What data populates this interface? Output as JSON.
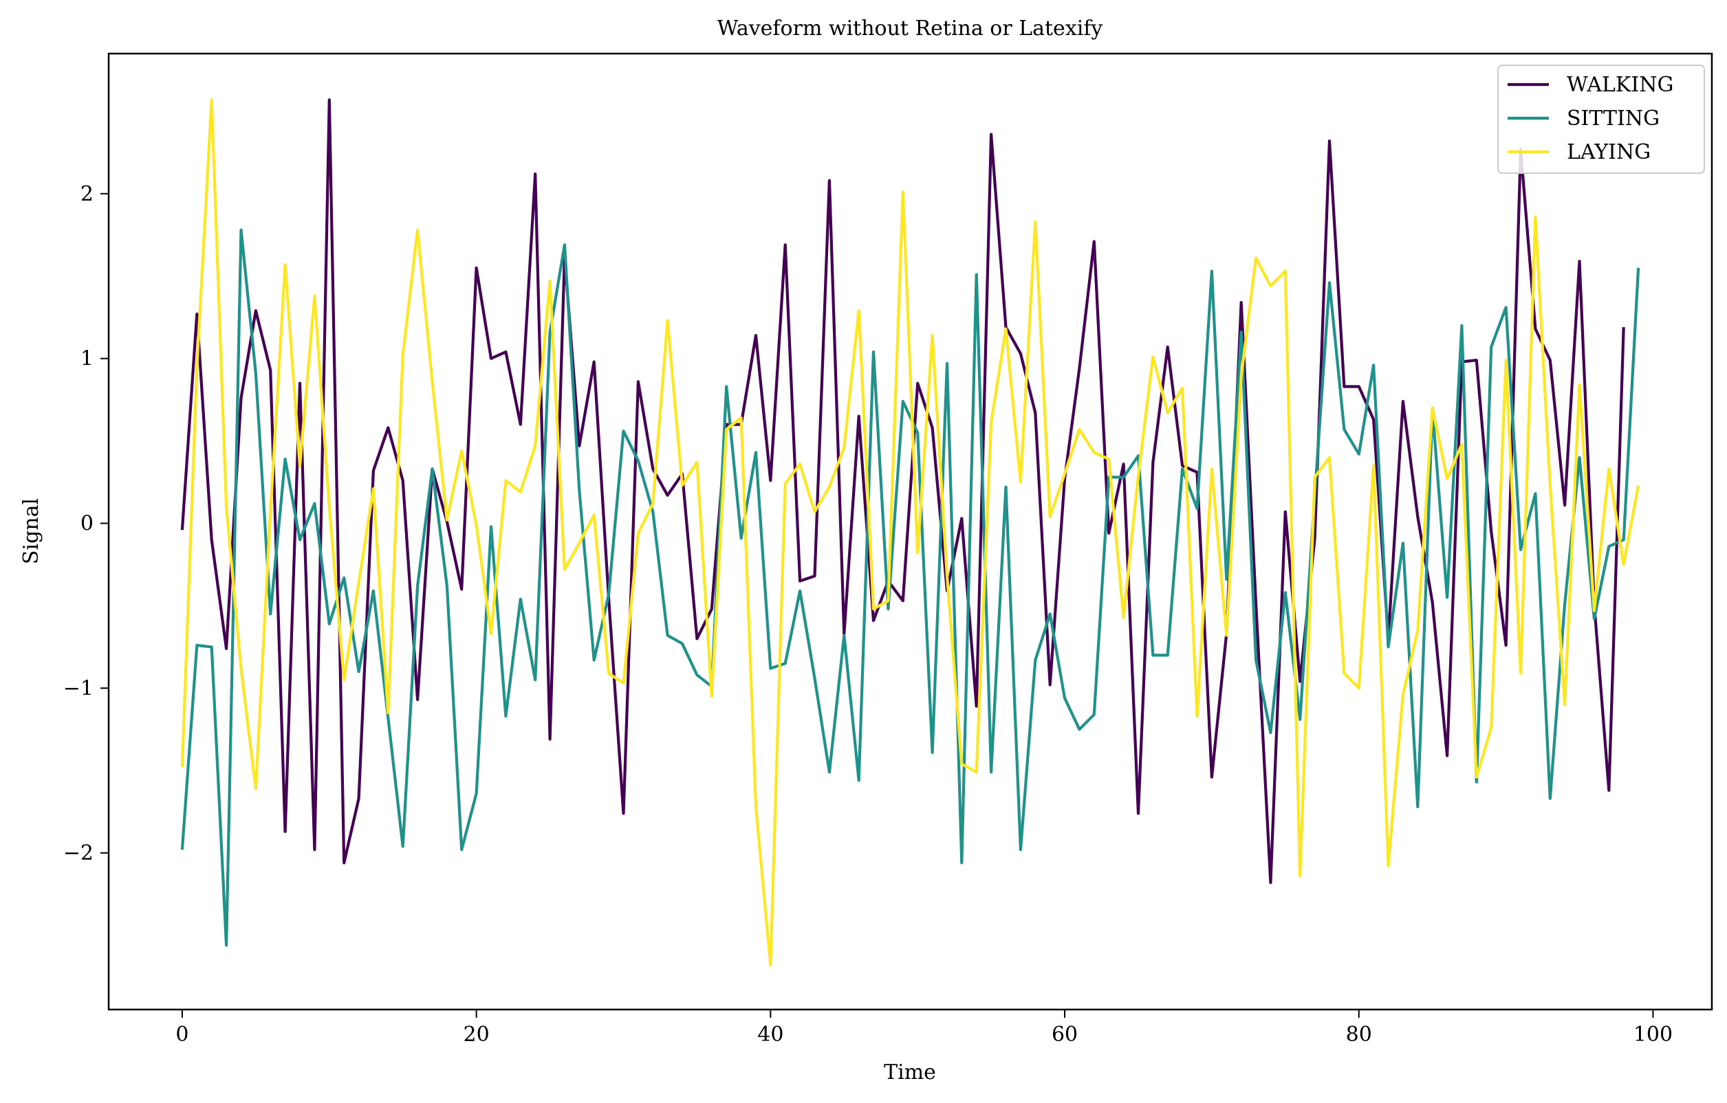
{
  "chart_data": {
    "type": "line",
    "title": "Waveform without Retina or Latexify",
    "xlabel": "Time",
    "ylabel": "Signal",
    "xlim": [
      -5,
      104
    ],
    "ylim": [
      -2.95,
      2.85
    ],
    "xticks": [
      0,
      20,
      40,
      60,
      80,
      100
    ],
    "yticks": [
      -2,
      -1,
      0,
      1,
      2
    ],
    "ytick_labels": [
      "−2",
      "−1",
      "0",
      "1",
      "2"
    ],
    "grid": false,
    "legend_position": "top-right",
    "series": [
      {
        "name": "WALKING",
        "color": "#440154",
        "values": [
          -0.04,
          1.27,
          -0.1,
          -0.76,
          0.76,
          1.29,
          0.93,
          -1.87,
          0.85,
          -1.98,
          2.57,
          -2.06,
          -1.67,
          0.32,
          0.58,
          0.26,
          -1.07,
          0.33,
          0.01,
          -0.4,
          1.55,
          1.0,
          1.04,
          0.6,
          2.12,
          -1.31,
          1.62,
          0.47,
          0.98,
          -0.46,
          -1.76,
          0.86,
          0.33,
          0.17,
          0.3,
          -0.7,
          -0.52,
          0.6,
          0.6,
          1.14,
          0.26,
          1.69,
          -0.35,
          -0.32,
          2.08,
          -0.67,
          0.65,
          -0.59,
          -0.35,
          -0.47,
          0.85,
          0.58,
          -0.41,
          0.03,
          -1.11,
          2.36,
          1.19,
          1.03,
          0.67,
          -0.98,
          0.27,
          0.94,
          1.71,
          -0.06,
          0.36,
          -1.76,
          0.37,
          1.07,
          0.35,
          0.31,
          -1.54,
          -0.67,
          1.34,
          -0.49,
          -2.18,
          0.07,
          -0.96,
          -0.09,
          2.32,
          0.83,
          0.83,
          0.63,
          -0.7,
          0.74,
          0.04,
          -0.48,
          -1.41,
          0.98,
          0.99,
          -0.05,
          -0.74,
          2.27,
          1.18,
          0.99,
          0.11,
          1.59,
          -0.49,
          -1.62,
          1.19
        ]
      },
      {
        "name": "SITTING",
        "color": "#21918c",
        "values": [
          -1.98,
          -0.74,
          -0.75,
          -2.56,
          1.78,
          0.91,
          -0.55,
          0.39,
          -0.1,
          0.12,
          -0.61,
          -0.33,
          -0.9,
          -0.41,
          -1.18,
          -1.96,
          -0.38,
          0.33,
          -0.38,
          -1.98,
          -1.64,
          -0.02,
          -1.17,
          -0.46,
          -0.95,
          1.16,
          1.69,
          0.2,
          -0.83,
          -0.43,
          0.56,
          0.38,
          0.07,
          -0.68,
          -0.73,
          -0.92,
          -0.99,
          0.83,
          -0.09,
          0.43,
          -0.88,
          -0.85,
          -0.41,
          -0.94,
          -1.51,
          -0.68,
          -1.56,
          1.04,
          -0.52,
          0.74,
          0.55,
          -1.39,
          0.97,
          -2.06,
          1.51,
          -1.51,
          0.22,
          -1.98,
          -0.83,
          -0.55,
          -1.06,
          -1.25,
          -1.16,
          0.28,
          0.28,
          0.41,
          -0.8,
          -0.8,
          0.33,
          0.09,
          1.53,
          -0.34,
          1.16,
          -0.83,
          -1.27,
          -0.42,
          -1.19,
          0.17,
          1.46,
          0.57,
          0.42,
          0.96,
          -0.75,
          -0.12,
          -1.72,
          0.69,
          -0.45,
          1.2,
          -1.57,
          1.07,
          1.31,
          -0.16,
          0.18,
          -1.67,
          -0.49,
          0.4,
          -0.58,
          -0.14,
          -0.1,
          1.55
        ]
      },
      {
        "name": "LAYING",
        "color": "#fde725",
        "values": [
          -1.48,
          0.95,
          2.57,
          0.1,
          -0.88,
          -1.61,
          0.07,
          1.57,
          0.35,
          1.38,
          0.1,
          -0.95,
          -0.36,
          0.21,
          -1.15,
          1.02,
          1.78,
          0.86,
          0.02,
          0.44,
          -0.01,
          -0.67,
          0.26,
          0.19,
          0.47,
          1.47,
          -0.28,
          -0.12,
          0.05,
          -0.91,
          -0.97,
          -0.06,
          0.12,
          1.23,
          0.23,
          0.37,
          -1.05,
          0.57,
          0.64,
          -1.72,
          -2.68,
          0.24,
          0.36,
          0.07,
          0.22,
          0.46,
          1.29,
          -0.52,
          -0.47,
          2.01,
          -0.18,
          1.14,
          -0.32,
          -1.46,
          -1.51,
          0.61,
          1.18,
          0.25,
          1.83,
          0.04,
          0.3,
          0.57,
          0.43,
          0.39,
          -0.57,
          0.29,
          1.01,
          0.67,
          0.82,
          -1.17,
          0.33,
          -0.68,
          0.89,
          1.61,
          1.44,
          1.53,
          -2.14,
          0.28,
          0.4,
          -0.91,
          -1.0,
          0.35,
          -2.08,
          -1.04,
          -0.65,
          0.7,
          0.27,
          0.48,
          -1.54,
          -1.24,
          0.99,
          -0.91,
          1.86,
          0.23,
          -1.1,
          0.84,
          -0.53,
          0.33,
          -0.25,
          0.23
        ]
      }
    ]
  }
}
